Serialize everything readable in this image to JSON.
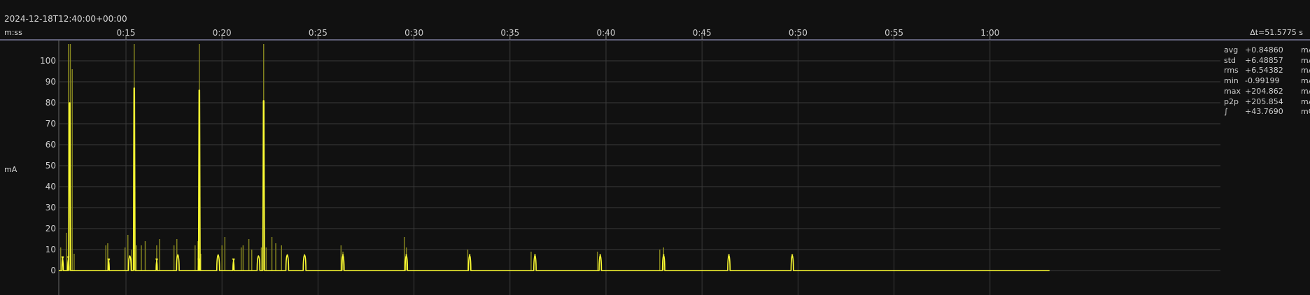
{
  "header": {
    "timestamp": "2024-12-18T12:40:00+00:00",
    "time_unit": "m:ss",
    "delta_t": "Δt=51.5775 s"
  },
  "stats": [
    {
      "name": "avg",
      "value": "+0.84860",
      "unit": "mA"
    },
    {
      "name": "std",
      "value": "+6.48857",
      "unit": "mA"
    },
    {
      "name": "rms",
      "value": "+6.54382",
      "unit": "mA"
    },
    {
      "name": "min",
      "value": "-0.99199",
      "unit": "mA"
    },
    {
      "name": "max",
      "value": "+204.862",
      "unit": "mA"
    },
    {
      "name": "p2p",
      "value": "+205.854",
      "unit": "mA"
    },
    {
      "name": "∫",
      "value": "+43.7690",
      "unit": "mC"
    }
  ],
  "colors": {
    "signal": "#ffff33",
    "envelope": "#8a8a20",
    "grid": "#3a3a3a",
    "top_rule": "#7a7a9a"
  },
  "chart_data": {
    "type": "line",
    "ylabel": "mA",
    "ylim": [
      -11,
      110
    ],
    "xlim": [
      11.5,
      72.0
    ],
    "x_ticks": [
      {
        "t": 15,
        "label": "0:15"
      },
      {
        "t": 20,
        "label": "0:20"
      },
      {
        "t": 25,
        "label": "0:25"
      },
      {
        "t": 30,
        "label": "0:30"
      },
      {
        "t": 35,
        "label": "0:35"
      },
      {
        "t": 40,
        "label": "0:40"
      },
      {
        "t": 45,
        "label": "0:45"
      },
      {
        "t": 50,
        "label": "0:50"
      },
      {
        "t": 55,
        "label": "0:55"
      },
      {
        "t": 60,
        "label": "1:00"
      }
    ],
    "y_ticks": [
      0,
      10,
      20,
      30,
      40,
      50,
      60,
      70,
      80,
      90,
      100
    ],
    "grid": true,
    "data_end_t": 63.1,
    "pulses": [
      {
        "t": 11.7,
        "v": 6.5,
        "w": 0.07
      },
      {
        "t": 12.0,
        "v": 6.5,
        "w": 0.07
      },
      {
        "t": 14.1,
        "v": 5.5,
        "w": 0.06
      },
      {
        "t": 15.2,
        "v": 7.0,
        "w": 0.14
      },
      {
        "t": 16.6,
        "v": 5.5,
        "w": 0.06
      },
      {
        "t": 17.7,
        "v": 7.5,
        "w": 0.14
      },
      {
        "t": 18.8,
        "v": 5.5,
        "w": 0.06
      },
      {
        "t": 19.8,
        "v": 7.5,
        "w": 0.14
      },
      {
        "t": 20.6,
        "v": 5.5,
        "w": 0.06
      },
      {
        "t": 21.9,
        "v": 7.0,
        "w": 0.14
      },
      {
        "t": 23.4,
        "v": 7.5,
        "w": 0.14
      },
      {
        "t": 24.3,
        "v": 7.5,
        "w": 0.14
      },
      {
        "t": 26.3,
        "v": 7.5,
        "w": 0.12
      },
      {
        "t": 29.6,
        "v": 7.5,
        "w": 0.12
      },
      {
        "t": 32.9,
        "v": 7.5,
        "w": 0.12
      },
      {
        "t": 36.3,
        "v": 7.5,
        "w": 0.12
      },
      {
        "t": 39.7,
        "v": 7.5,
        "w": 0.12
      },
      {
        "t": 43.0,
        "v": 7.5,
        "w": 0.12
      },
      {
        "t": 46.4,
        "v": 7.5,
        "w": 0.12
      },
      {
        "t": 49.7,
        "v": 7.5,
        "w": 0.12
      }
    ],
    "spikes": [
      {
        "t": 12.07,
        "v": 80
      },
      {
        "t": 15.43,
        "v": 87
      },
      {
        "t": 18.82,
        "v": 86
      },
      {
        "t": 22.17,
        "v": 81
      }
    ],
    "envelope_spikes": [
      {
        "t": 11.6,
        "v": 11
      },
      {
        "t": 11.9,
        "v": 18
      },
      {
        "t": 12.0,
        "v": 108
      },
      {
        "t": 12.1,
        "v": 108
      },
      {
        "t": 12.2,
        "v": 96
      },
      {
        "t": 12.3,
        "v": 8
      },
      {
        "t": 13.95,
        "v": 12
      },
      {
        "t": 14.05,
        "v": 13
      },
      {
        "t": 14.95,
        "v": 11
      },
      {
        "t": 15.1,
        "v": 17
      },
      {
        "t": 15.3,
        "v": 10
      },
      {
        "t": 15.43,
        "v": 108
      },
      {
        "t": 15.55,
        "v": 12
      },
      {
        "t": 15.8,
        "v": 12
      },
      {
        "t": 16.0,
        "v": 14
      },
      {
        "t": 16.6,
        "v": 12
      },
      {
        "t": 16.75,
        "v": 15
      },
      {
        "t": 17.5,
        "v": 12
      },
      {
        "t": 17.65,
        "v": 15
      },
      {
        "t": 18.6,
        "v": 12
      },
      {
        "t": 18.75,
        "v": 14
      },
      {
        "t": 18.82,
        "v": 108
      },
      {
        "t": 18.9,
        "v": 8
      },
      {
        "t": 20.0,
        "v": 12
      },
      {
        "t": 20.15,
        "v": 16
      },
      {
        "t": 21.0,
        "v": 11
      },
      {
        "t": 21.1,
        "v": 12
      },
      {
        "t": 21.4,
        "v": 15
      },
      {
        "t": 21.55,
        "v": 10
      },
      {
        "t": 22.05,
        "v": 11
      },
      {
        "t": 22.17,
        "v": 108
      },
      {
        "t": 22.3,
        "v": 11
      },
      {
        "t": 22.6,
        "v": 16
      },
      {
        "t": 22.8,
        "v": 13
      },
      {
        "t": 23.1,
        "v": 12
      },
      {
        "t": 26.2,
        "v": 12
      },
      {
        "t": 26.3,
        "v": 9
      },
      {
        "t": 29.5,
        "v": 16
      },
      {
        "t": 29.6,
        "v": 11
      },
      {
        "t": 32.8,
        "v": 10
      },
      {
        "t": 36.1,
        "v": 9
      },
      {
        "t": 39.55,
        "v": 9
      },
      {
        "t": 42.8,
        "v": 10
      },
      {
        "t": 43.0,
        "v": 11
      }
    ]
  }
}
